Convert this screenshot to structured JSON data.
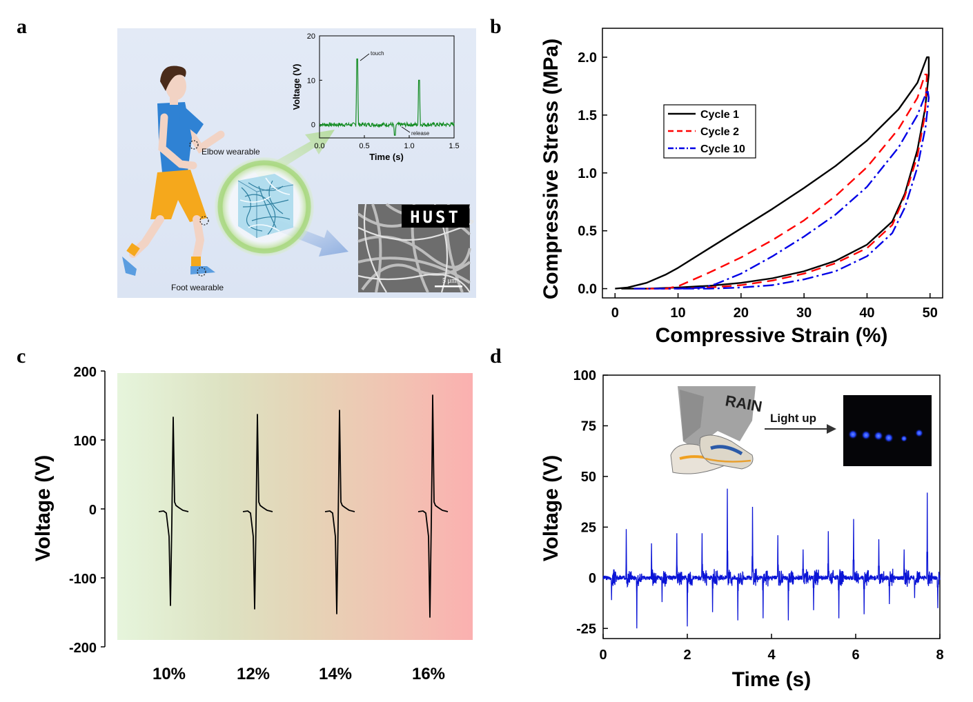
{
  "panels": {
    "a": {
      "letter": "a",
      "labels": {
        "elbow": "Elbow wearable",
        "foot": "Foot wearable",
        "touch": "touch",
        "release": "release",
        "sem_text": "HUST",
        "scale": "5 μm"
      },
      "inset_chart": {
        "type": "line",
        "xlabel": "Time (s)",
        "ylabel": "Voltage (V)",
        "xlim": [
          0,
          1.5
        ],
        "ylim": [
          -3,
          20
        ],
        "xticks": [
          "0.0",
          "0.5",
          "1.0",
          "1.5"
        ],
        "yticks": [
          "0",
          "10",
          "20"
        ],
        "color": "#0f8a1e",
        "peaks": [
          {
            "x": 0.42,
            "y": 14.8
          },
          {
            "x": 0.84,
            "y": -2.4
          },
          {
            "x": 1.11,
            "y": 10.0
          }
        ]
      }
    },
    "b": {
      "letter": "b",
      "chart_data": {
        "type": "line",
        "xlabel": "Compressive Strain (%)",
        "ylabel": "Compressive Stress (MPa)",
        "xlim": [
          -2,
          52
        ],
        "ylim": [
          -0.08,
          2.25
        ],
        "xticks": [
          "0",
          "10",
          "20",
          "30",
          "40",
          "50"
        ],
        "yticks": [
          "0.0",
          "0.5",
          "1.0",
          "1.5",
          "2.0"
        ],
        "legend_position": "upper-left",
        "series": [
          {
            "name": "Cycle 1",
            "color": "#000000",
            "dash": "",
            "loading": [
              [
                0,
                0
              ],
              [
                2,
                0.01
              ],
              [
                5,
                0.05
              ],
              [
                8,
                0.12
              ],
              [
                10,
                0.18
              ],
              [
                15,
                0.35
              ],
              [
                20,
                0.52
              ],
              [
                25,
                0.69
              ],
              [
                30,
                0.87
              ],
              [
                35,
                1.06
              ],
              [
                40,
                1.28
              ],
              [
                45,
                1.55
              ],
              [
                48,
                1.78
              ],
              [
                49.5,
                2.0
              ]
            ],
            "unloading": [
              [
                49.8,
                2.0
              ],
              [
                49.8,
                1.85
              ],
              [
                49.2,
                1.55
              ],
              [
                48,
                1.2
              ],
              [
                46,
                0.82
              ],
              [
                44,
                0.58
              ],
              [
                40,
                0.38
              ],
              [
                35,
                0.24
              ],
              [
                30,
                0.15
              ],
              [
                25,
                0.09
              ],
              [
                20,
                0.05
              ],
              [
                15,
                0.025
              ],
              [
                10,
                0.01
              ],
              [
                5,
                0.0
              ],
              [
                1,
                0.0
              ]
            ]
          },
          {
            "name": "Cycle 2",
            "color": "#ff0000",
            "dash": "14,8",
            "loading": [
              [
                3,
                0
              ],
              [
                8,
                0
              ],
              [
                10,
                0.02
              ],
              [
                15,
                0.14
              ],
              [
                20,
                0.27
              ],
              [
                25,
                0.42
              ],
              [
                30,
                0.59
              ],
              [
                35,
                0.8
              ],
              [
                40,
                1.05
              ],
              [
                45,
                1.38
              ],
              [
                48,
                1.65
              ],
              [
                49.2,
                1.85
              ]
            ],
            "unloading": [
              [
                49.5,
                1.85
              ],
              [
                49.2,
                1.5
              ],
              [
                48,
                1.15
              ],
              [
                46,
                0.8
              ],
              [
                44,
                0.55
              ],
              [
                40,
                0.35
              ],
              [
                35,
                0.22
              ],
              [
                30,
                0.13
              ],
              [
                25,
                0.07
              ],
              [
                20,
                0.03
              ],
              [
                15,
                0.01
              ],
              [
                10,
                0.0
              ],
              [
                5,
                0.0
              ]
            ]
          },
          {
            "name": "Cycle 10",
            "color": "#0000e6",
            "dash": "16,5,3,5",
            "loading": [
              [
                3,
                0
              ],
              [
                10,
                0
              ],
              [
                14,
                0.01
              ],
              [
                16,
                0.04
              ],
              [
                20,
                0.13
              ],
              [
                25,
                0.28
              ],
              [
                30,
                0.45
              ],
              [
                35,
                0.64
              ],
              [
                40,
                0.88
              ],
              [
                45,
                1.22
              ],
              [
                48,
                1.5
              ],
              [
                49.6,
                1.72
              ]
            ],
            "unloading": [
              [
                49.8,
                1.65
              ],
              [
                49.3,
                1.4
              ],
              [
                48,
                1.05
              ],
              [
                46,
                0.7
              ],
              [
                44,
                0.48
              ],
              [
                40,
                0.28
              ],
              [
                35,
                0.15
              ],
              [
                30,
                0.08
              ],
              [
                25,
                0.03
              ],
              [
                20,
                0.01
              ],
              [
                15,
                0.0
              ],
              [
                10,
                0.0
              ]
            ]
          }
        ]
      }
    },
    "c": {
      "letter": "c",
      "chart_data": {
        "type": "line",
        "ylabel": "Voltage (V)",
        "ylim": [
          -200,
          200
        ],
        "yticks": [
          "200",
          "100",
          "0",
          "-100",
          "-200"
        ],
        "categories": [
          "10%",
          "12%",
          "14%",
          "16%"
        ],
        "peak_max": [
          133,
          137,
          143,
          165
        ],
        "peak_min": [
          -140,
          -145,
          -152,
          -157
        ],
        "color": "#000000"
      }
    },
    "d": {
      "letter": "d",
      "labels": {
        "light_up": "Light up",
        "inset_text": "RAIN"
      },
      "chart_data": {
        "type": "line",
        "xlabel": "Time (s)",
        "ylabel": "Voltage (V)",
        "xlim": [
          0,
          8
        ],
        "ylim": [
          -30,
          100
        ],
        "xticks": [
          "0",
          "2",
          "4",
          "6",
          "8"
        ],
        "yticks": [
          "100",
          "75",
          "50",
          "25",
          "0",
          "-25"
        ],
        "color": "#0a14d6",
        "positive_peaks": [
          [
            0.55,
            24
          ],
          [
            1.15,
            17
          ],
          [
            1.75,
            22
          ],
          [
            2.35,
            22
          ],
          [
            2.95,
            44
          ],
          [
            3.55,
            35
          ],
          [
            4.15,
            21
          ],
          [
            4.75,
            14
          ],
          [
            5.35,
            23
          ],
          [
            5.95,
            29
          ],
          [
            6.55,
            19
          ],
          [
            7.15,
            14
          ],
          [
            7.7,
            42
          ]
        ],
        "negative_peaks": [
          [
            0.2,
            -11
          ],
          [
            0.8,
            -25
          ],
          [
            1.4,
            -12
          ],
          [
            2.0,
            -24
          ],
          [
            2.6,
            -17
          ],
          [
            3.2,
            -21
          ],
          [
            3.8,
            -20
          ],
          [
            4.4,
            -21
          ],
          [
            5.0,
            -16
          ],
          [
            5.6,
            -20
          ],
          [
            6.2,
            -18
          ],
          [
            6.8,
            -13
          ],
          [
            7.4,
            -10
          ],
          [
            7.95,
            -15
          ]
        ]
      }
    }
  }
}
